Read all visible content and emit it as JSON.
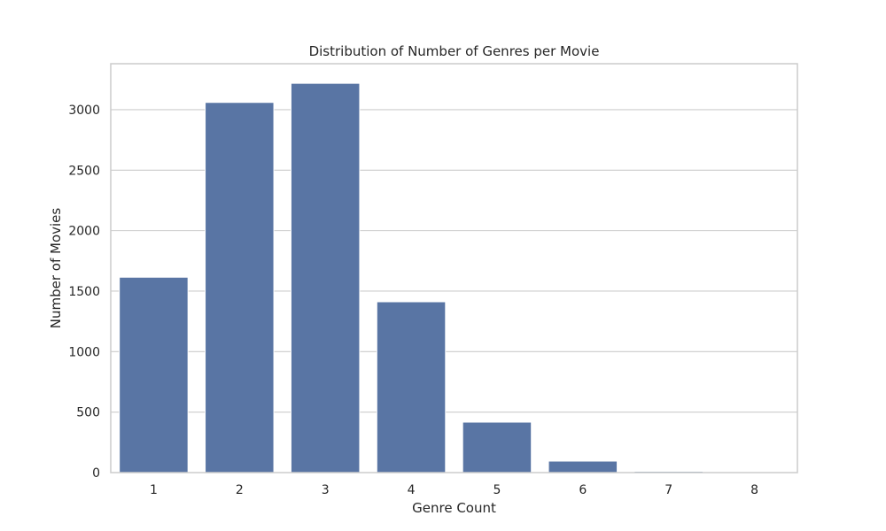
{
  "chart_data": {
    "type": "bar",
    "title": "Distribution of Number of Genres per Movie",
    "xlabel": "Genre Count",
    "ylabel": "Number of Movies",
    "categories": [
      "1",
      "2",
      "3",
      "4",
      "5",
      "6",
      "7",
      "8"
    ],
    "values": [
      1615,
      3060,
      3218,
      1412,
      417,
      95,
      10,
      2
    ],
    "ylim": [
      0,
      3380
    ],
    "yticks": [
      0,
      500,
      1000,
      1500,
      2000,
      2500,
      3000
    ],
    "bar_color": "#5975a4",
    "grid": true,
    "grid_color": "#cccccc"
  }
}
